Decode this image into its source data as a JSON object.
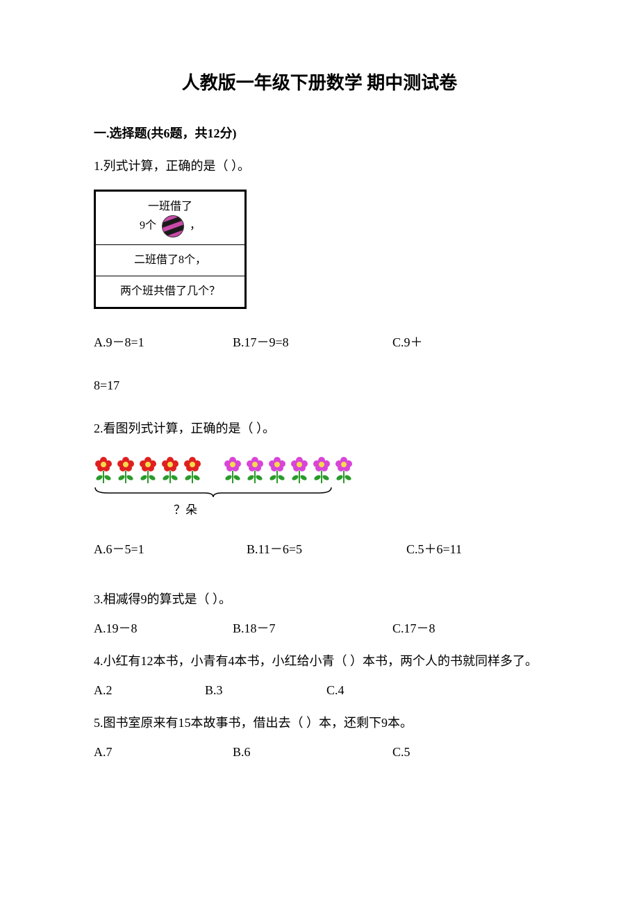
{
  "title": "人教版一年级下册数学 期中测试卷",
  "section1": {
    "header": "一.选择题(共6题，共12分)",
    "q1": {
      "text": "1.列式计算，正确的是（    ）。",
      "box": {
        "row1_pre": "一班借了",
        "row1_post": "，",
        "row1_num": "9个",
        "row2": "二班借了8个，",
        "row3": "两个班共借了几个？"
      },
      "optA": "A.9－8=1",
      "optB": "B.17－9=8",
      "optC": "C.9＋",
      "cont": "8=17"
    },
    "q2": {
      "text": "2.看图列式计算，正确的是（    ）。",
      "flowers": {
        "red_count": 5,
        "pink_count": 6,
        "red_color": "#e02020",
        "pink_color": "#d845d8",
        "center_color": "#f7d94c",
        "leaf_color": "#2a9b2a",
        "stem_color": "#2a9b2a"
      },
      "bracket_label": "？朵",
      "optA": "A.6－5=1",
      "optB": "B.11－6=5",
      "optC": "C.5＋6=11"
    },
    "q3": {
      "text": "3.相减得9的算式是（    ）。",
      "optA": "A.19－8",
      "optB": "B.18－7",
      "optC": "C.17－8"
    },
    "q4": {
      "text": "4.小红有12本书，小青有4本书，小红给小青（   ）本书，两个人的书就同样多了。",
      "optA": "A.2",
      "optB": "B.3",
      "optC": "C.4"
    },
    "q5": {
      "text": "5.图书室原来有15本故事书，借出去（   ）本，还剩下9本。",
      "optA": "A.7",
      "optB": "B.6",
      "optC": "C.5"
    }
  }
}
